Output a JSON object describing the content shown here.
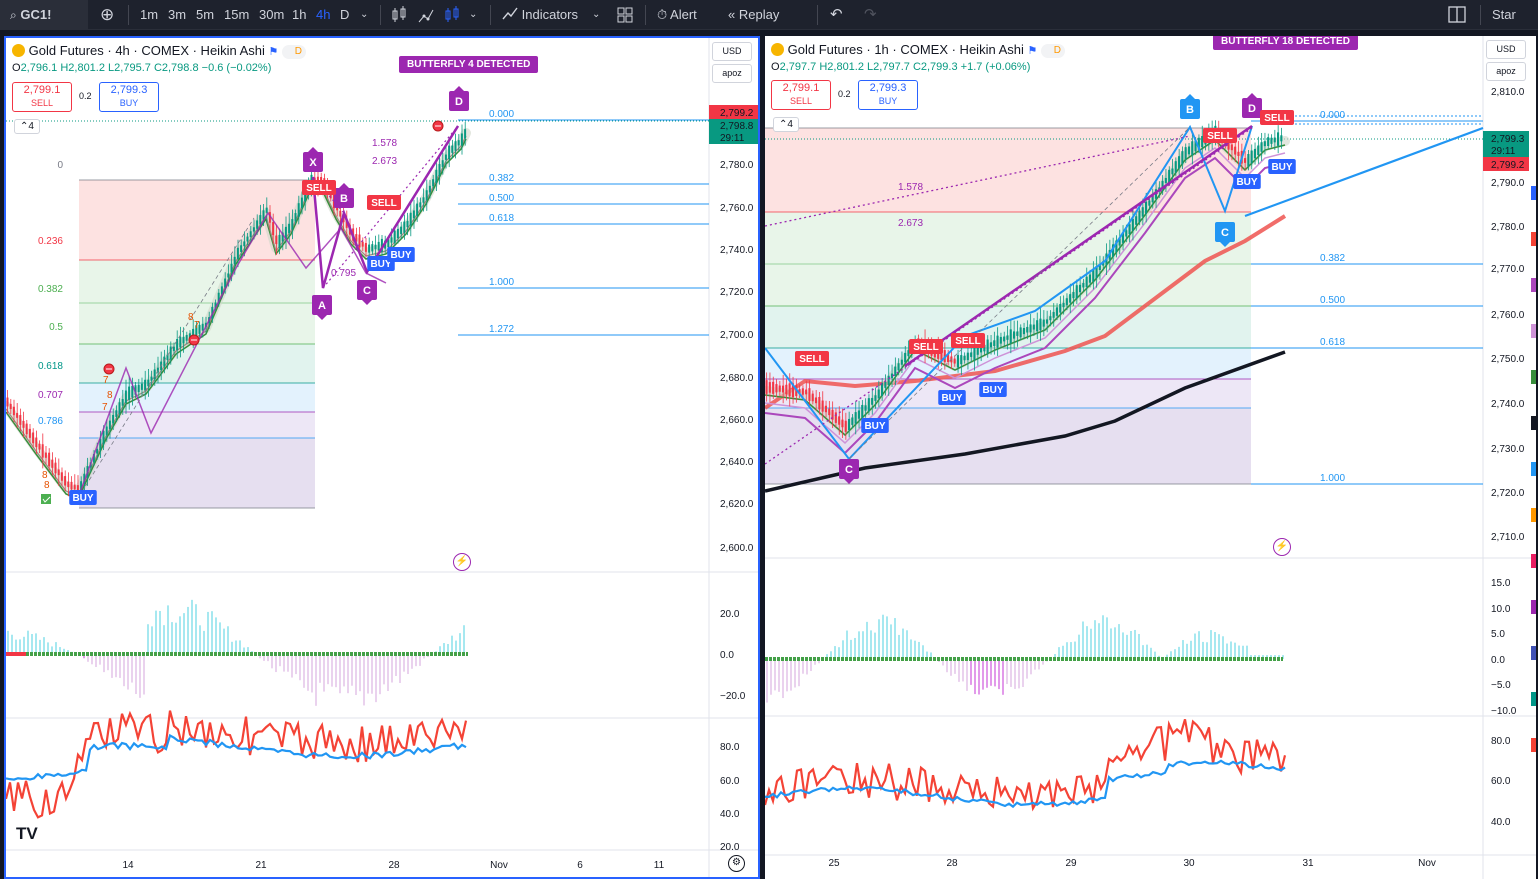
{
  "toolbar": {
    "symbol": "GC1!",
    "intervals": [
      "1m",
      "3m",
      "5m",
      "15m",
      "30m",
      "1h",
      "4h",
      "D"
    ],
    "active_interval": "4h",
    "indicators": "Indicators",
    "alert": "Alert",
    "replay": "Replay",
    "star": "Star"
  },
  "left": {
    "title": "Gold Futures · 4h · COMEX · Heikin Ashi",
    "ohlc": {
      "o": "2,796.1",
      "h": "H2,801.2",
      "l": "L2,795.7",
      "c": "C2,798.8",
      "chg": "−0.6 (−0.02%)"
    },
    "sell": {
      "price": "2,799.1",
      "label": "SELL"
    },
    "spread": "0.2",
    "buy": {
      "price": "2,799.3",
      "label": "BUY"
    },
    "collapse": "4",
    "currency": "USD",
    "scale": "apoz",
    "badge": "BUTTERFLY 4 DETECTED",
    "price_ticks": [
      "2,780.0",
      "2,760.0",
      "2,740.0",
      "2,720.0",
      "2,700.0",
      "2,680.0",
      "2,660.0",
      "2,640.0",
      "2,620.0",
      "2,600.0"
    ],
    "price_tag_red": "2,799.2",
    "price_tag_green": "2,798.8",
    "countdown": "29:11",
    "fib_right": [
      "0.000",
      "0.382",
      "0.500",
      "0.618",
      "1.000",
      "1.272"
    ],
    "fib_left": [
      "0",
      "0.236",
      "0.382",
      "0.5",
      "0.618",
      "0.707",
      "0.786"
    ],
    "fib_mid": [
      "1.578",
      "2.673",
      "0.795"
    ],
    "macd_ticks": [
      "20.0",
      "0.0",
      "−20.0"
    ],
    "rsi_ticks": [
      "80.0",
      "60.0",
      "40.0",
      "20.0"
    ],
    "time_ticks": [
      "14",
      "21",
      "28",
      "Nov",
      "6",
      "11"
    ],
    "points": [
      "X",
      "A",
      "B",
      "C",
      "D"
    ],
    "signals": [
      "SELL",
      "BUY",
      "BUY",
      "BUY",
      "SELL"
    ],
    "counters": [
      "7",
      "8",
      "7",
      "8",
      "7",
      "8",
      "8"
    ]
  },
  "right": {
    "title": "Gold Futures · 1h · COMEX · Heikin Ashi",
    "ohlc": {
      "o": "2,797.7",
      "h": "H2,801.2",
      "l": "L2,797.7",
      "c": "C2,799.3",
      "chg": "+1.7 (+0.06%)"
    },
    "sell": {
      "price": "2,799.1",
      "label": "SELL"
    },
    "spread": "0.2",
    "buy": {
      "price": "2,799.3",
      "label": "BUY"
    },
    "collapse": "4",
    "currency": "USD",
    "scale": "apoz",
    "badge": "BUTTERFLY 18 DETECTED",
    "price_ticks": [
      "2,810.0",
      "2,800.0",
      "2,790.0",
      "2,780.0",
      "2,770.0",
      "2,760.0",
      "2,750.0",
      "2,740.0",
      "2,730.0",
      "2,720.0",
      "2,710.0"
    ],
    "price_tag_green": "2,799.3",
    "price_tag_red": "2,799.2",
    "countdown": "29:11",
    "fib_right": [
      "0.000",
      "0.382",
      "0.500",
      "0.618",
      "1.000"
    ],
    "fib_mid": [
      "1.578",
      "2.673"
    ],
    "macd_ticks": [
      "15.0",
      "10.0",
      "5.0",
      "0.0",
      "−5.0",
      "−10.0"
    ],
    "rsi_ticks": [
      "80.0",
      "60.0",
      "40.0"
    ],
    "time_ticks": [
      "25",
      "28",
      "29",
      "30",
      "31",
      "Nov"
    ],
    "points": [
      "B",
      "C",
      "D",
      "C"
    ],
    "signals": [
      "SELL",
      "SELL",
      "SELL",
      "SELL",
      "SELL",
      "BUY",
      "BUY",
      "BUY",
      "BUY",
      "BUY"
    ]
  },
  "colors": {
    "buy": "#2962ff",
    "sell": "#f23645",
    "pattern": "#9c27b0",
    "up": "#089981",
    "rsi_fast": "#f44336",
    "rsi_slow": "#2196f3"
  }
}
